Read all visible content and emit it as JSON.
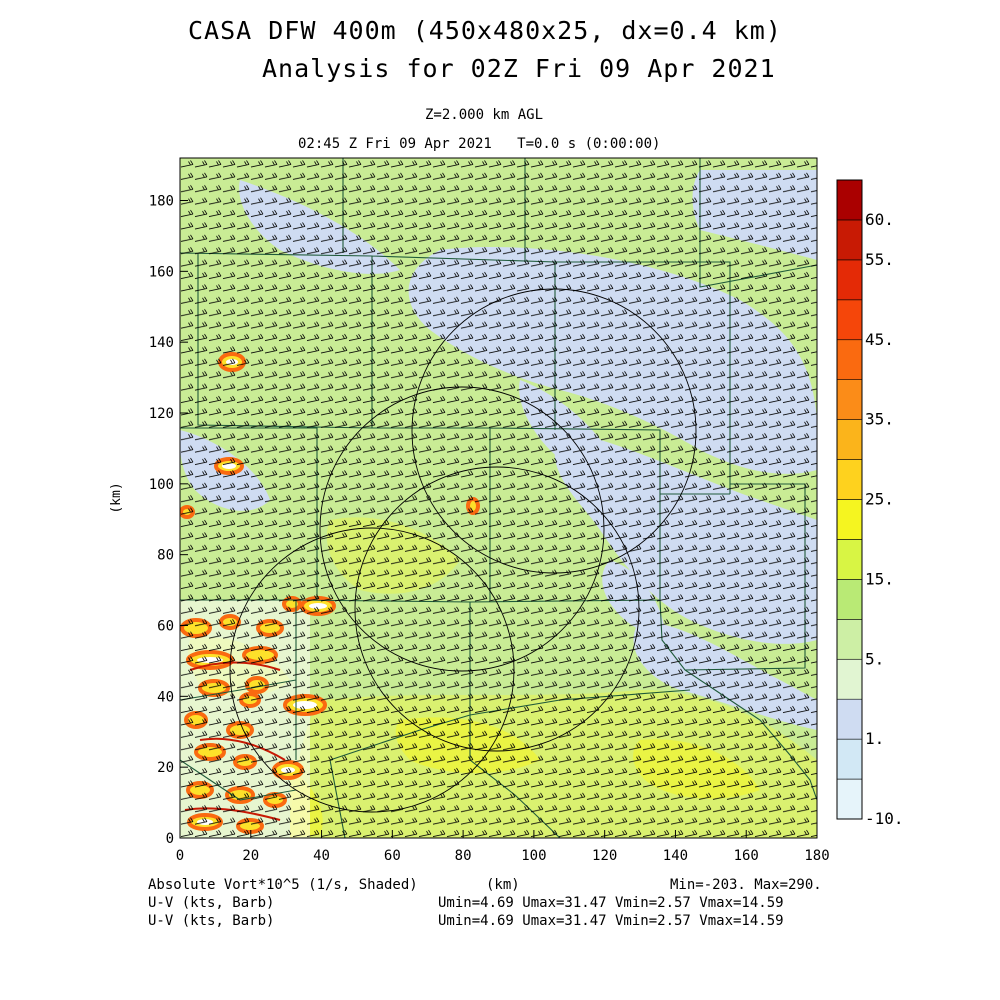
{
  "header": {
    "title_line1": "CASA DFW 400m (450x480x25, dx=0.4 km)",
    "title_line2": "Analysis for 02Z Fri 09 Apr 2021",
    "level_line": "Z=2.000 km AGL",
    "time_line": "02:45 Z Fri 09 Apr 2021   T=0.0 s (0:00:00)"
  },
  "footer": {
    "field_label": "Absolute Vort*10^5 (1/s, Shaded)",
    "xunit_label": "(km)",
    "minmax": "Min=-203. Max=290.",
    "barb1_label": "U-V (kts, Barb)",
    "barb1_stats": "Umin=4.69 Umax=31.47 Vmin=2.57 Vmax=14.59",
    "barb2_label": "U-V (kts, Barb)",
    "barb2_stats": "Umin=4.69 Umax=31.47 Vmin=2.57 Vmax=14.59"
  },
  "chart_data": {
    "type": "heatmap",
    "field": "Absolute Vort*10^5 (1/s, Shaded)",
    "xlabel": "",
    "ylabel": "(km)",
    "xlim": [
      0,
      180
    ],
    "ylim": [
      0,
      192
    ],
    "x_ticks": [
      0,
      20,
      40,
      60,
      80,
      100,
      120,
      140,
      160,
      180
    ],
    "y_ticks": [
      0,
      20,
      40,
      60,
      80,
      100,
      120,
      140,
      160,
      180
    ],
    "min": -203,
    "max": 290,
    "colorbar": {
      "levels": [
        -10,
        -5,
        1,
        3,
        5,
        10,
        15,
        20,
        25,
        30,
        35,
        40,
        45,
        50,
        55,
        60
      ],
      "labels": [
        {
          "value": -10,
          "text": "-10."
        },
        {
          "value": 1,
          "text": "1."
        },
        {
          "value": 5,
          "text": "5."
        },
        {
          "value": 15,
          "text": "15."
        },
        {
          "value": 25,
          "text": "25."
        },
        {
          "value": 35,
          "text": "35."
        },
        {
          "value": 45,
          "text": "45."
        },
        {
          "value": 55,
          "text": "55."
        },
        {
          "value": 60,
          "text": "60."
        }
      ],
      "colors": [
        "#e6f4fa",
        "#d2e8f5",
        "#cfdcf2",
        "#e1f5d2",
        "#cdefa5",
        "#b9ea75",
        "#d8f544",
        "#f5f520",
        "#fed21e",
        "#fbb41b",
        "#fb8c18",
        "#fa6a10",
        "#f5460a",
        "#e42a06",
        "#c81a04",
        "#aa0000"
      ]
    },
    "radar_rings": [
      {
        "center": [
          93,
          115
        ],
        "radius": 40
      },
      {
        "center": [
          80,
          87
        ],
        "radius": 40
      },
      {
        "center": [
          90,
          65
        ],
        "radius": 40
      },
      {
        "center": [
          55,
          48
        ],
        "radius": 40
      }
    ],
    "wind_barbs": {
      "u_min": 4.69,
      "u_max": 31.47,
      "v_min": 2.57,
      "v_max": 14.59,
      "units": "kts"
    },
    "colors": {
      "background": "#c9ec95",
      "county_lines": "#1f5a3a",
      "rings": "#000000",
      "barbs": "#000000"
    }
  }
}
